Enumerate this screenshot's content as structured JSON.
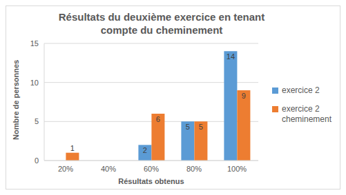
{
  "chart_data": {
    "type": "bar",
    "title": "Résultats du deuxième exercice en tenant compte du cheminement",
    "x_label": "Résultats obtenus",
    "y_label": "Nombre de personnes",
    "categories": [
      "20%",
      "40%",
      "60%",
      "80%",
      "100%"
    ],
    "series": [
      {
        "name": "exercice 2",
        "color": "#5b9bd5",
        "values": [
          null,
          null,
          2,
          5,
          14
        ]
      },
      {
        "name": "exercice 2 cheminement",
        "color": "#ed7d31",
        "values": [
          1,
          null,
          6,
          5,
          9
        ]
      }
    ],
    "ylim": [
      0,
      15
    ],
    "yticks": [
      0,
      5,
      10,
      15
    ],
    "grid": true,
    "legend": "right",
    "data_labels": true
  }
}
